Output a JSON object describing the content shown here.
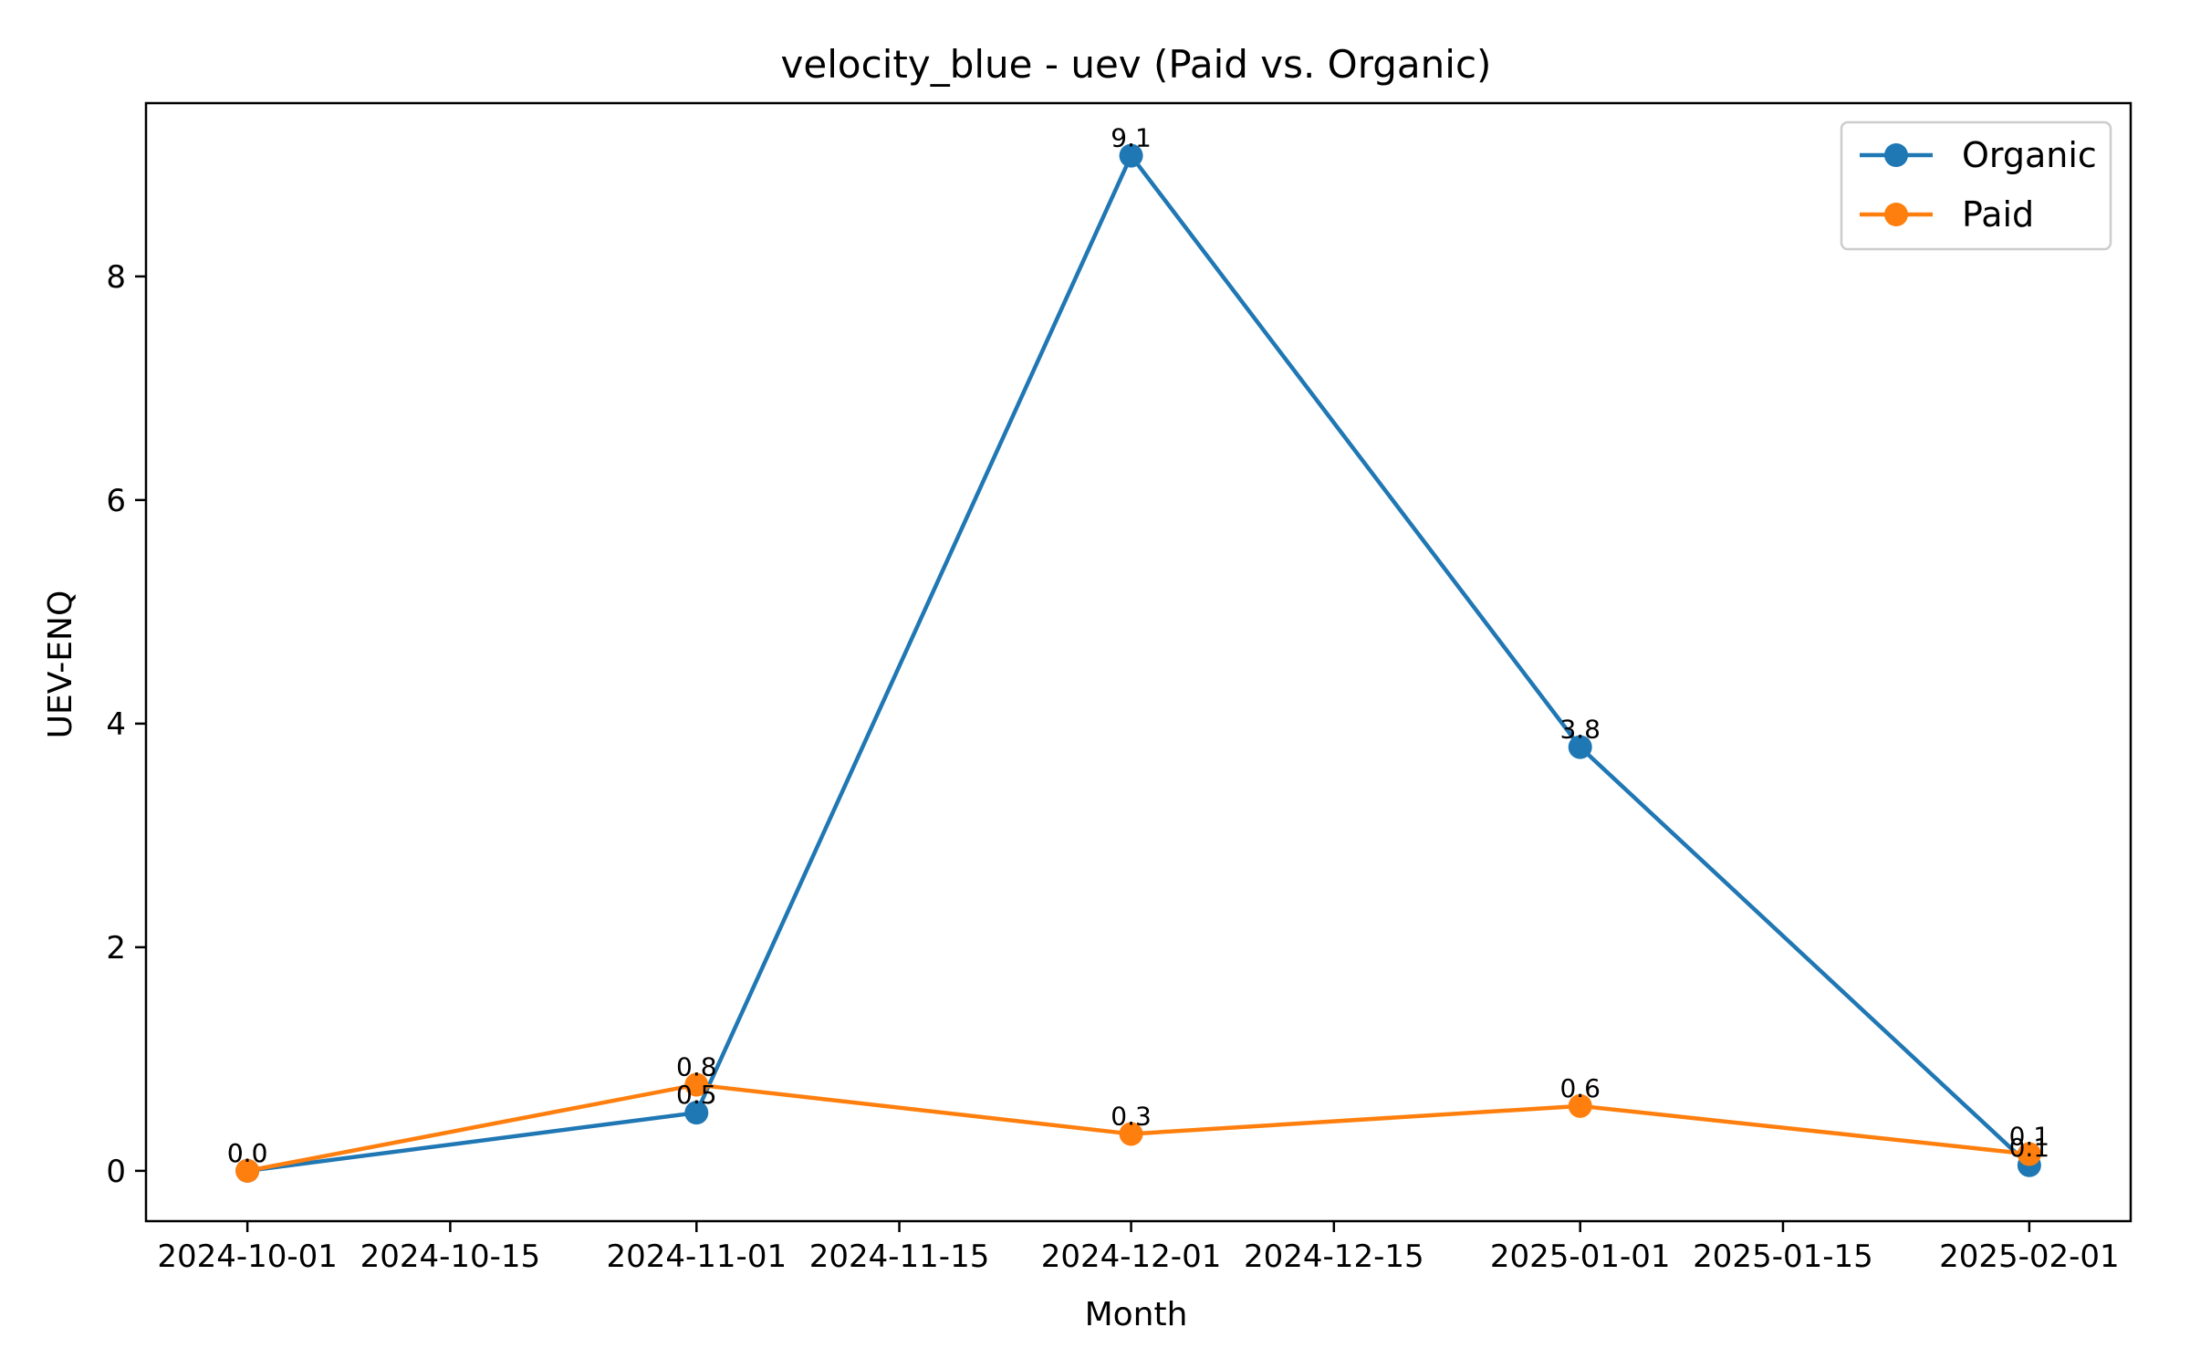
{
  "chart_data": {
    "type": "line",
    "title": "velocity_blue - uev (Paid vs. Organic)",
    "xlabel": "Month",
    "ylabel": "UEV-ENQ",
    "x": [
      "2024-10-01",
      "2024-11-01",
      "2024-12-01",
      "2025-01-01",
      "2025-02-01"
    ],
    "x_ticks": [
      "2024-10-01",
      "2024-10-15",
      "2024-11-01",
      "2024-11-15",
      "2024-12-01",
      "2024-12-15",
      "2025-01-01",
      "2025-01-15",
      "2025-02-01"
    ],
    "y_ticks": [
      0,
      2,
      4,
      6,
      8
    ],
    "xlim": [
      "2024-09-24",
      "2025-02-08"
    ],
    "ylim": [
      -0.45,
      9.55
    ],
    "grid": false,
    "legend_position": "top-right",
    "series": [
      {
        "name": "Organic",
        "color": "#1f77b4",
        "values": [
          0.0,
          0.52,
          9.08,
          3.79,
          0.05
        ],
        "labels": [
          "0.0",
          "0.5",
          "9.1",
          "3.8",
          "0.1"
        ]
      },
      {
        "name": "Paid",
        "color": "#ff7f0e",
        "values": [
          0.0,
          0.77,
          0.33,
          0.58,
          0.15
        ],
        "labels": [
          "0.0",
          "0.8",
          "0.3",
          "0.6",
          "0.1"
        ]
      }
    ]
  }
}
